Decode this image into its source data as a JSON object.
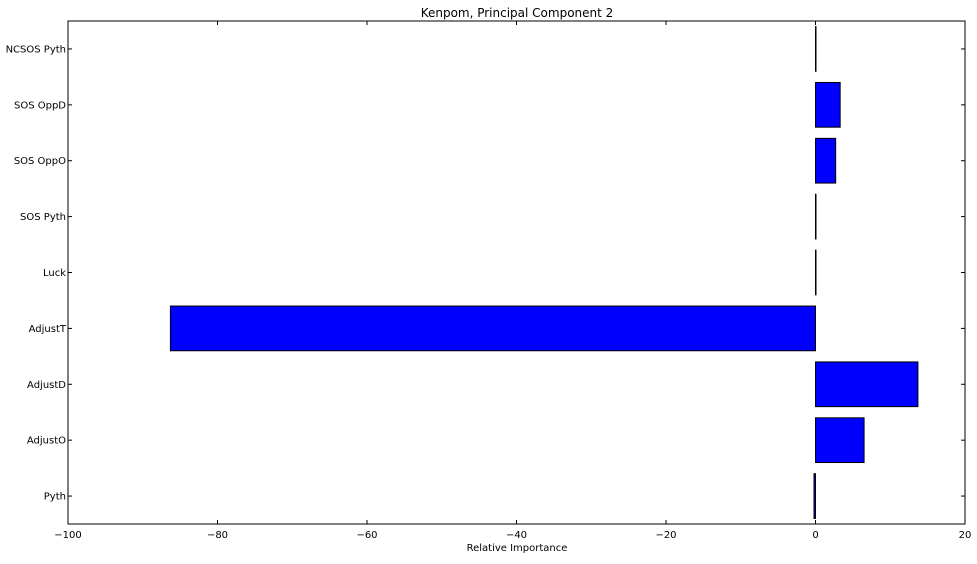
{
  "chart_data": {
    "type": "bar",
    "orientation": "horizontal",
    "title": "Kenpom, Principal Component 2",
    "xlabel": "Relative Importance",
    "ylabel": "",
    "categories": [
      "Pyth",
      "AdjustO",
      "AdjustD",
      "AdjustT",
      "Luck",
      "SOS Pyth",
      "SOS OppO",
      "SOS OppD",
      "NCSOS Pyth"
    ],
    "values": [
      -0.2,
      6.5,
      13.7,
      -86.3,
      0.05,
      0.05,
      2.7,
      3.3,
      0.05
    ],
    "xlim": [
      -100,
      20
    ],
    "xticks": [
      -100,
      -80,
      -60,
      -40,
      -20,
      0,
      20
    ],
    "xtick_labels": [
      "−100",
      "−80",
      "−60",
      "−40",
      "−20",
      "0",
      "20"
    ],
    "grid": false,
    "bar_color": "#0000ff",
    "edge_color": "#000000"
  }
}
